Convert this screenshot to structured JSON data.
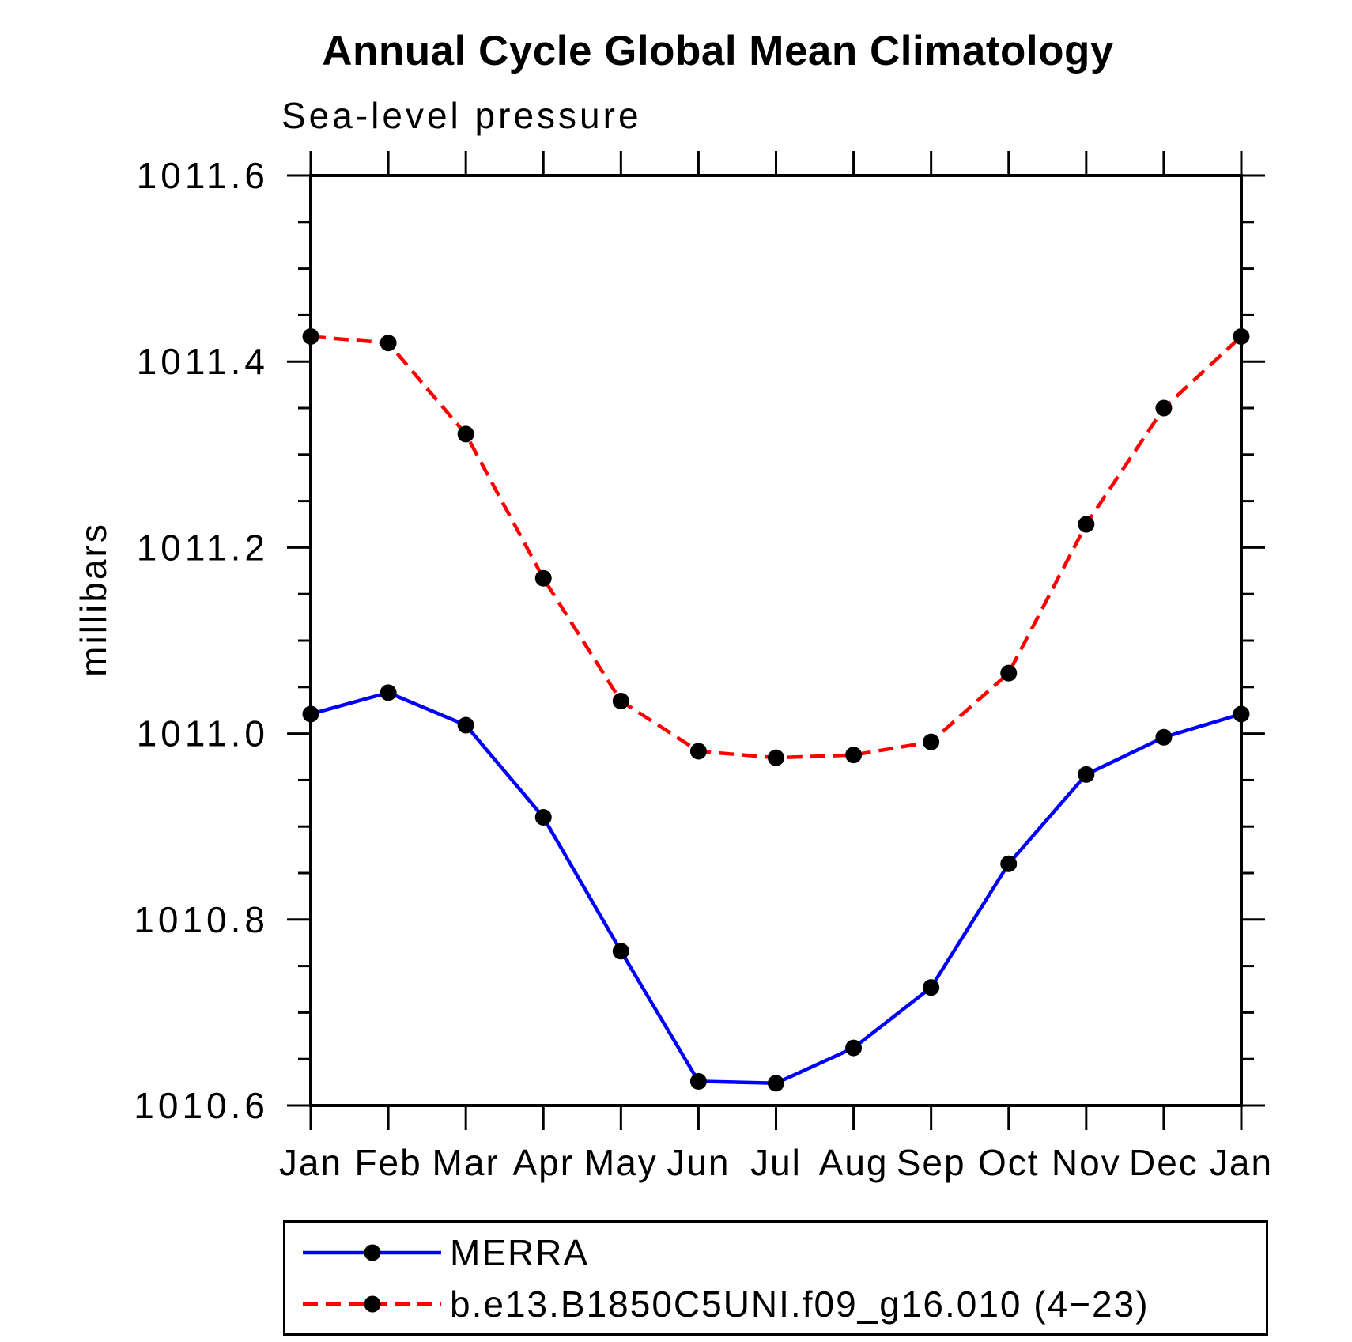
{
  "chart": {
    "title": "Annual Cycle Global Mean Climatology",
    "subtitle": "Sea-level pressure",
    "ylabel": "millibars"
  },
  "legend": {
    "entries": [
      {
        "label": "MERRA",
        "color": "#0000ff",
        "style": "solid"
      },
      {
        "label": "b.e13.B1850C5UNI.f09_g16.010 (4−23)",
        "color": "#ff0000",
        "style": "dashed"
      }
    ]
  },
  "chart_data": {
    "type": "line",
    "title": "Annual Cycle Global Mean Climatology",
    "subtitle": "Sea-level pressure",
    "xlabel": "",
    "ylabel": "millibars",
    "categories": [
      "Jan",
      "Feb",
      "Mar",
      "Apr",
      "May",
      "Jun",
      "Jul",
      "Aug",
      "Sep",
      "Oct",
      "Nov",
      "Dec",
      "Jan"
    ],
    "ylim": [
      1010.6,
      1011.6
    ],
    "ytick_major": 0.2,
    "ytick_minor": 0.05,
    "ytick_labels": [
      "1010.6",
      "1010.8",
      "1011.0",
      "1011.2",
      "1011.4",
      "1011.6"
    ],
    "grid": false,
    "legend_position": "bottom",
    "marker": {
      "shape": "circle",
      "color": "#000000",
      "radius": 10.5
    },
    "series": [
      {
        "name": "MERRA",
        "color": "#0000ff",
        "dash": null,
        "values": [
          1011.021,
          1011.044,
          1011.009,
          1010.91,
          1010.766,
          1010.626,
          1010.624,
          1010.662,
          1010.727,
          1010.86,
          1010.956,
          1010.996,
          1011.021
        ]
      },
      {
        "name": "b.e13.B1850C5UNI.f09_g16.010 (4−23)",
        "color": "#ff0000",
        "dash": [
          19,
          10
        ],
        "values": [
          1011.427,
          1011.42,
          1011.322,
          1011.167,
          1011.035,
          1010.981,
          1010.974,
          1010.977,
          1010.991,
          1011.065,
          1011.225,
          1011.35,
          1011.427
        ]
      }
    ]
  }
}
